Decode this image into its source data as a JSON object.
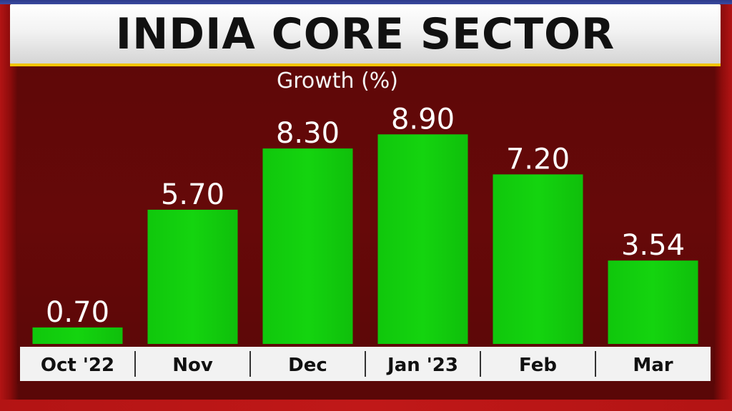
{
  "title": "INDIA CORE SECTOR",
  "chart_data": {
    "type": "bar",
    "title": "INDIA CORE SECTOR",
    "subtitle": "Growth (%)",
    "categories": [
      "Oct '22",
      "Nov",
      "Dec",
      "Jan '23",
      "Feb",
      "Mar"
    ],
    "values": [
      0.7,
      5.7,
      8.3,
      8.9,
      7.2,
      3.54
    ],
    "value_labels": [
      "0.70",
      "5.70",
      "8.30",
      "8.90",
      "7.20",
      "3.54"
    ],
    "ylim": [
      0,
      10
    ],
    "grid": false,
    "legend": "none"
  },
  "colors": {
    "bar": "#14d40f",
    "label_text": "#ffffff",
    "axis_band": "#f2f2f2",
    "category_text": "#111111",
    "title_accent": "#f2c400"
  }
}
